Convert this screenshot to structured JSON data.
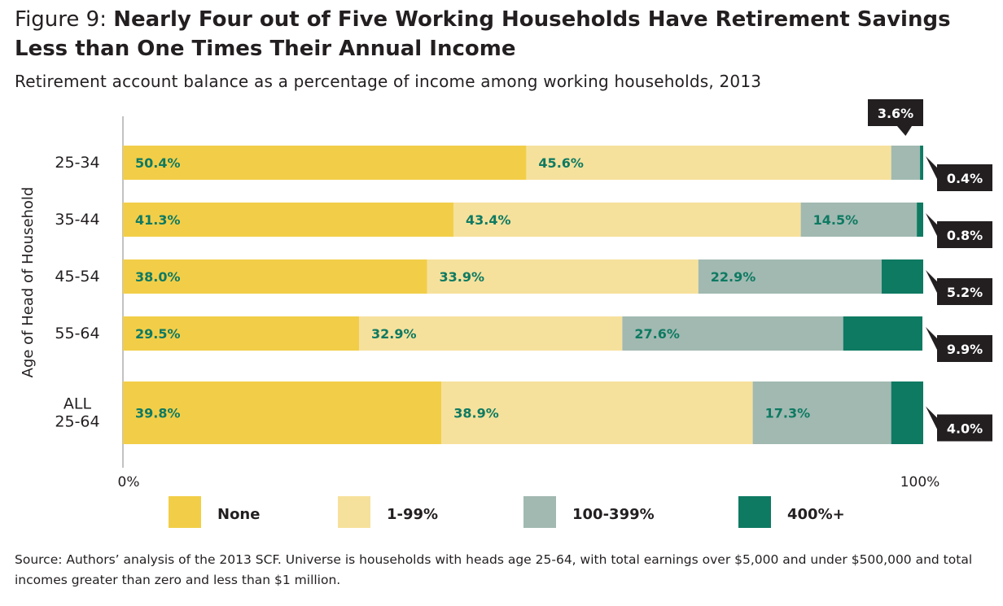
{
  "figure": {
    "label": "Figure 9:",
    "title": "Nearly Four out of Five Working Households Have Retirement Savings Less than One Times Their Annual Income",
    "subtitle": "Retirement account balance as a percentage of income among working households, 2013",
    "source": "Source: Authors’ analysis of the 2013 SCF. Universe is households with heads age 25-64, with total earnings over $5,000 and under $500,000 and total incomes greater than zero and less than $1 million."
  },
  "chart_data": {
    "type": "bar",
    "orientation": "horizontal",
    "stacked": true,
    "ylabel": "Age of Head of Household",
    "xlim": [
      0,
      100
    ],
    "x_ticks": [
      "0%",
      "100%"
    ],
    "categories": [
      [
        "25-34"
      ],
      [
        "35-44"
      ],
      [
        "45-54"
      ],
      [
        "55-64"
      ],
      [
        "ALL",
        "25-64"
      ]
    ],
    "series": [
      {
        "name": "None",
        "color": "#f2ce48",
        "values": [
          50.4,
          41.3,
          38.0,
          29.5,
          39.8
        ]
      },
      {
        "name": "1-99%",
        "color": "#f6e19c",
        "values": [
          45.6,
          43.4,
          33.9,
          32.9,
          38.9
        ]
      },
      {
        "name": "100-399%",
        "color": "#a1b9b1",
        "values": [
          3.6,
          14.5,
          22.9,
          27.6,
          17.3
        ]
      },
      {
        "name": "400%+",
        "color": "#0e7a62",
        "values": [
          0.4,
          0.8,
          5.2,
          9.9,
          4.0
        ]
      }
    ],
    "labels_inside": [
      [
        "50.4%",
        "45.6%",
        "",
        ""
      ],
      [
        "41.3%",
        "43.4%",
        "14.5%",
        ""
      ],
      [
        "38.0%",
        "33.9%",
        "22.9%",
        ""
      ],
      [
        "29.5%",
        "32.9%",
        "27.6%",
        ""
      ],
      [
        "39.8%",
        "38.9%",
        "17.3%",
        ""
      ]
    ],
    "callouts": [
      {
        "row": 0,
        "series": 2,
        "text": "3.6%",
        "side": "above"
      },
      {
        "row": 0,
        "series": 3,
        "text": "0.4%",
        "side": "right"
      },
      {
        "row": 1,
        "series": 3,
        "text": "0.8%",
        "side": "right"
      },
      {
        "row": 2,
        "series": 3,
        "text": "5.2%",
        "side": "right"
      },
      {
        "row": 3,
        "series": 3,
        "text": "9.9%",
        "side": "right"
      },
      {
        "row": 4,
        "series": 3,
        "text": "4.0%",
        "side": "right"
      }
    ],
    "legend_position": "bottom",
    "grid": false
  }
}
